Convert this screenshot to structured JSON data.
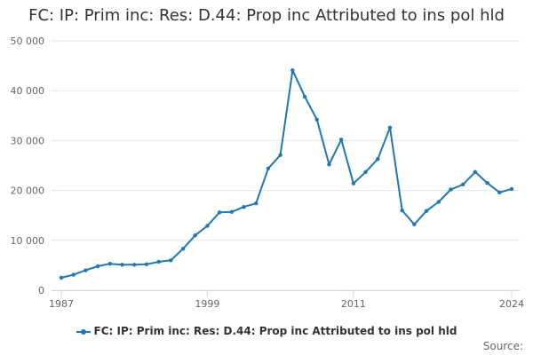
{
  "chart_data": {
    "type": "line",
    "title": "FC: IP: Prim inc: Res: D.44: Prop inc Attributed to ins pol hld",
    "xlabel": "",
    "ylabel": "",
    "x": [
      1987,
      1988,
      1989,
      1990,
      1991,
      1992,
      1993,
      1994,
      1995,
      1996,
      1997,
      1998,
      1999,
      2000,
      2001,
      2002,
      2003,
      2004,
      2005,
      2006,
      2007,
      2008,
      2009,
      2010,
      2011,
      2012,
      2013,
      2014,
      2015,
      2016,
      2017,
      2018,
      2019,
      2020,
      2021,
      2022,
      2023,
      2024
    ],
    "series": [
      {
        "name": "FC: IP: Prim inc: Res: D.44: Prop inc Attributed to ins pol hld",
        "color": "#1f78b4",
        "values": [
          2500,
          3100,
          4000,
          4800,
          5300,
          5100,
          5100,
          5200,
          5700,
          6000,
          8300,
          11000,
          12900,
          15600,
          15700,
          16700,
          17400,
          24400,
          27100,
          44100,
          38800,
          34200,
          25200,
          30200,
          21400,
          23700,
          26300,
          32600,
          16000,
          13200,
          15900,
          17700,
          20200,
          21200,
          23700,
          21500,
          19600,
          20300
        ]
      }
    ],
    "ylim": [
      0,
      50000
    ],
    "xlim": [
      1987,
      2024
    ],
    "y_ticks": [
      0,
      10000,
      20000,
      30000,
      40000,
      50000
    ],
    "y_tick_labels": [
      "0",
      "10 000",
      "20 000",
      "30 000",
      "40 000",
      "50 000"
    ],
    "x_tick_labels": [
      "1987",
      "1999",
      "2011",
      "2024"
    ],
    "grid": true,
    "legend_position": "bottom"
  },
  "credits": "Source:"
}
